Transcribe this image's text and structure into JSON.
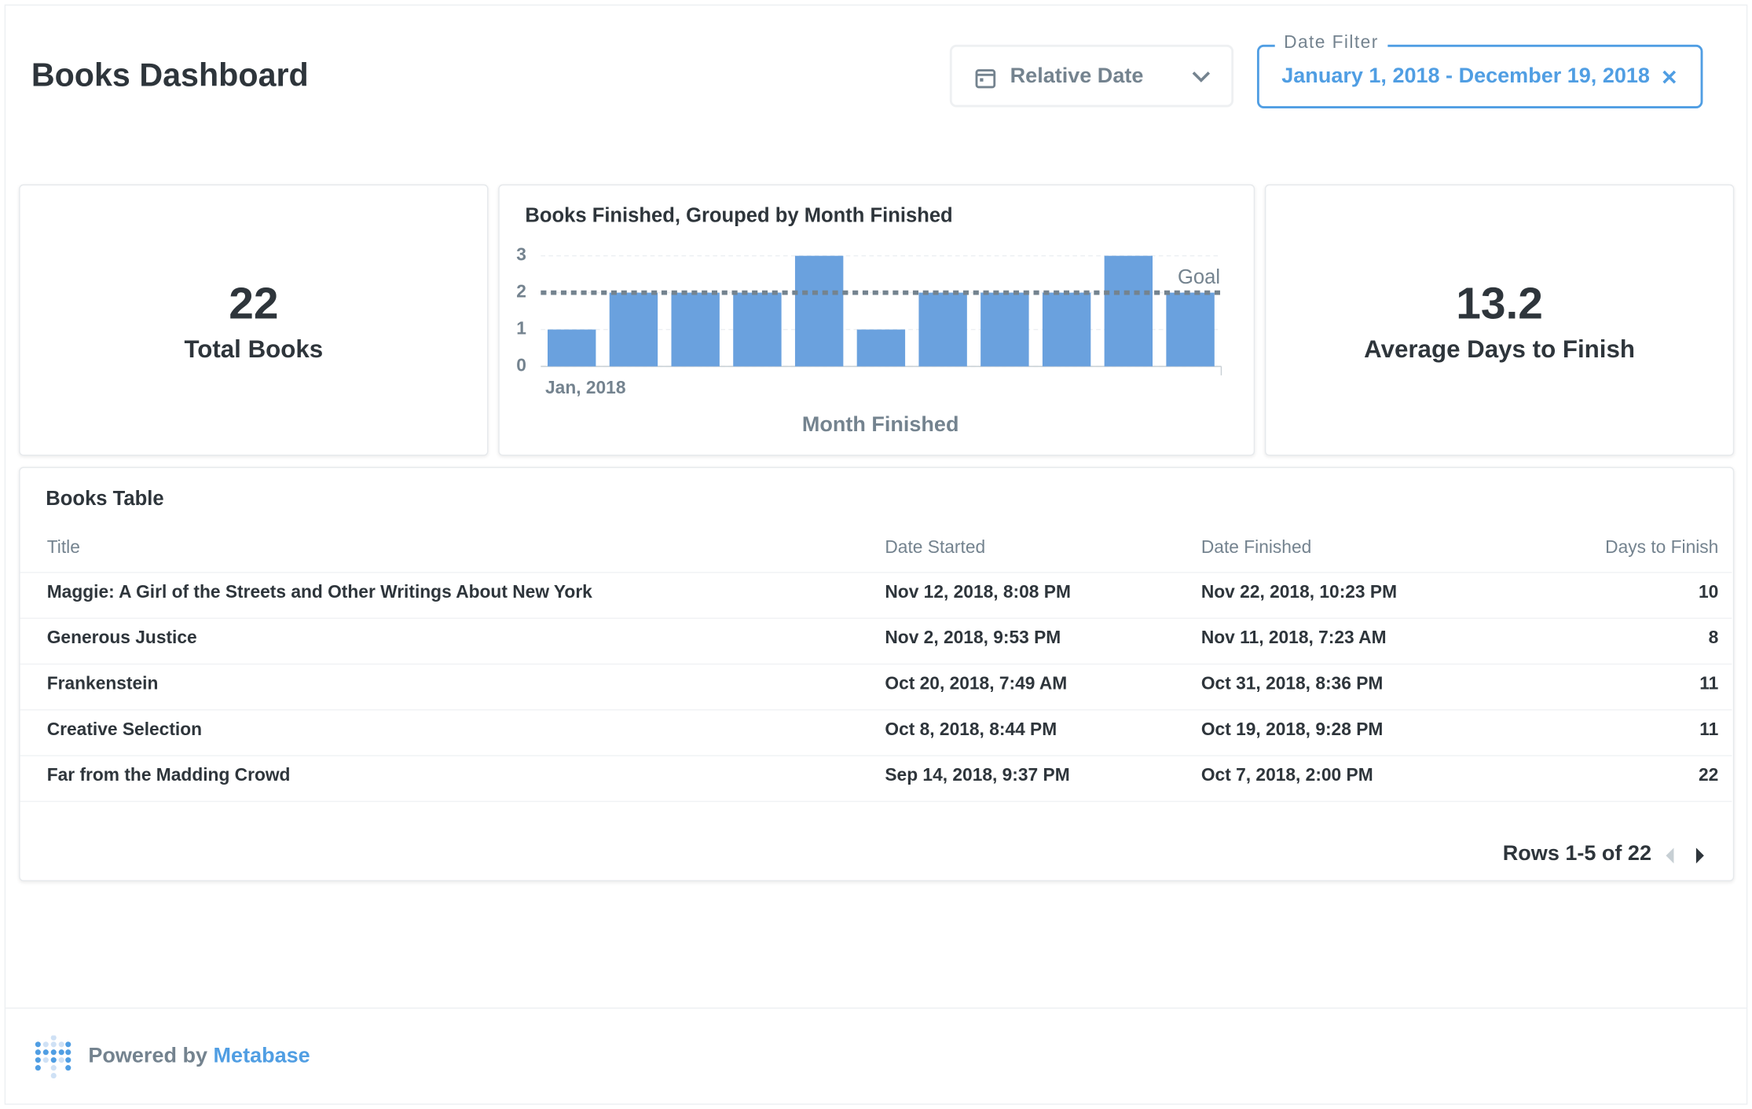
{
  "header": {
    "title": "Books Dashboard"
  },
  "filters": [
    {
      "label": "Relative Date"
    },
    {
      "legend": "Date Filter",
      "label": "January 1, 2018 - December 19, 2018"
    }
  ],
  "cards": [
    {
      "value": "22",
      "label": "Total Books"
    },
    {
      "value": "13.2",
      "label": "Average Days to Finish"
    }
  ],
  "chart_data": {
    "type": "bar",
    "title": "Books Finished, Grouped by Month Finished",
    "x_label": "Month Finished",
    "categories": [
      "Jan, 2018",
      null,
      null,
      null,
      null,
      null,
      null,
      null,
      null,
      null,
      null
    ],
    "values": [
      1,
      2,
      2,
      2,
      3,
      1,
      2,
      2,
      2,
      3,
      2
    ],
    "color": "#6aa1de",
    "ylim": [
      0,
      3
    ],
    "yticks": [
      0,
      1,
      2,
      3
    ],
    "grid": true,
    "goal": {
      "value": 2,
      "label": "Goal"
    }
  },
  "table": {
    "title": "Books Table",
    "columns": [
      "Title",
      "Date Started",
      "Date Finished",
      "Days to Finish"
    ],
    "rows": [
      [
        "Maggie: A Girl of the Streets and Other Writings About New York",
        "Nov 12, 2018, 8:08 PM",
        "Nov 22, 2018, 10:23 PM",
        "10"
      ],
      [
        "Generous Justice",
        "Nov 2, 2018, 9:53 PM",
        "Nov 11, 2018, 7:23 AM",
        "8"
      ],
      [
        "Frankenstein",
        "Oct 20, 2018, 7:49 AM",
        "Oct 31, 2018, 8:36 PM",
        "11"
      ],
      [
        "Creative Selection",
        "Oct 8, 2018, 8:44 PM",
        "Oct 19, 2018, 9:28 PM",
        "11"
      ],
      [
        "Far from the Madding Crowd",
        "Sep 14, 2018, 9:37 PM",
        "Oct 7, 2018, 2:00 PM",
        "22"
      ]
    ],
    "pagination": "Rows 1-5 of 22"
  },
  "footer": {
    "prefix": "Powered by",
    "brand": "Metabase"
  }
}
